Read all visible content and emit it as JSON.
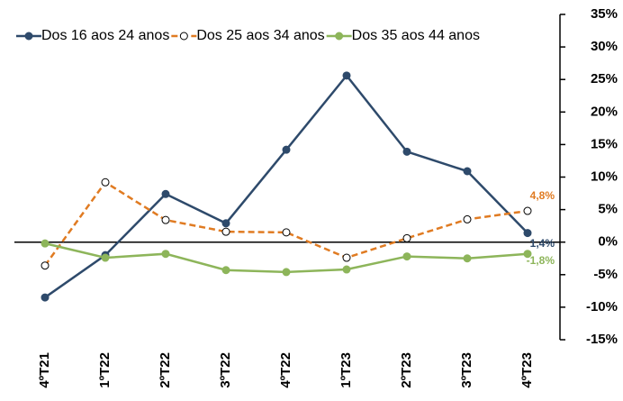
{
  "chart_data": {
    "type": "line",
    "categories": [
      "4ºT21",
      "1ºT22",
      "2ºT22",
      "3ºT22",
      "4ºT22",
      "1ºT23",
      "2ºT23",
      "3ºT23",
      "4ºT23"
    ],
    "series": [
      {
        "name": "Dos 16 aos 24 anos",
        "color": "#2e4a6b",
        "dash": false,
        "marker_fill": "#2e4a6b",
        "values": [
          -8.5,
          -2.0,
          7.4,
          2.9,
          14.2,
          25.6,
          13.9,
          10.9,
          1.4
        ],
        "value_labels": [
          null,
          null,
          null,
          null,
          null,
          null,
          null,
          null,
          "1,4%"
        ]
      },
      {
        "name": "Dos 25 aos 34 anos",
        "color": "#e07b22",
        "dash": true,
        "marker_fill": "#ffffff",
        "values": [
          -3.6,
          9.2,
          3.4,
          1.6,
          1.5,
          -2.4,
          0.6,
          3.5,
          4.8
        ],
        "value_labels": [
          null,
          null,
          null,
          null,
          null,
          null,
          null,
          null,
          "4,8%"
        ]
      },
      {
        "name": "Dos 35 aos 44 anos",
        "color": "#8db55a",
        "dash": false,
        "marker_fill": "#8db55a",
        "values": [
          -0.2,
          -2.4,
          -1.8,
          -4.3,
          -4.6,
          -4.2,
          -2.2,
          -2.5,
          -1.8
        ],
        "value_labels": [
          null,
          null,
          null,
          null,
          null,
          null,
          null,
          null,
          "-1,8%"
        ]
      }
    ],
    "ylim": [
      -15,
      35
    ],
    "yticks": [
      {
        "value": -15,
        "label": "-15%"
      },
      {
        "value": -10,
        "label": "-10%"
      },
      {
        "value": -5,
        "label": "-5%"
      },
      {
        "value": 0,
        "label": "0%"
      },
      {
        "value": 5,
        "label": "5%"
      },
      {
        "value": 10,
        "label": "10%"
      },
      {
        "value": 15,
        "label": "15%"
      },
      {
        "value": 20,
        "label": "20%"
      },
      {
        "value": 25,
        "label": "25%"
      },
      {
        "value": 30,
        "label": "30%"
      },
      {
        "value": 35,
        "label": "35%"
      }
    ],
    "y_axis_side": "right"
  }
}
